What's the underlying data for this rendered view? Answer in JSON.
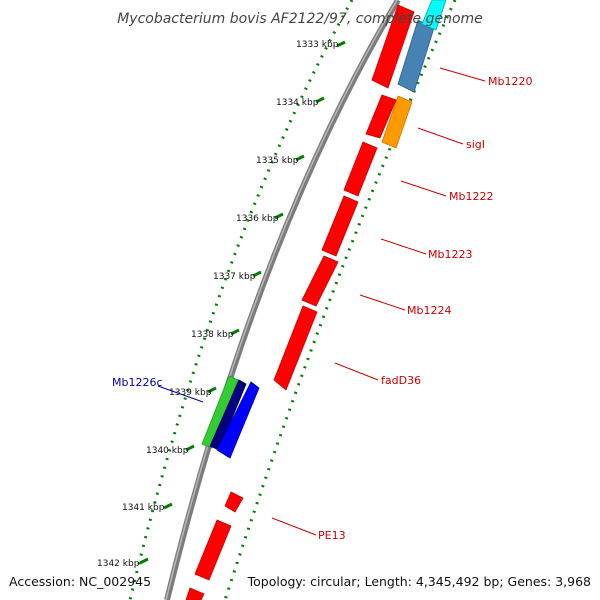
{
  "title": "Mycobacterium bovis AF2122/97, complete genome",
  "footer": {
    "accession": "Accession: NC_002945",
    "summary": "Topology: circular; Length: 4,345,492 bp; Genes: 3,968"
  },
  "scale_ticks": [
    "1333 kbp",
    "1334 kbp",
    "1335 kbp",
    "1336 kbp",
    "1337 kbp",
    "1338 kbp",
    "1339 kbp",
    "1340 kbp",
    "1341 kbp",
    "1342 kbp"
  ],
  "gene_labels": [
    {
      "text": "Mb1220",
      "color": "#cc0000"
    },
    {
      "text": "sigI",
      "color": "#cc0000"
    },
    {
      "text": "Mb1222",
      "color": "#cc0000"
    },
    {
      "text": "Mb1223",
      "color": "#cc0000"
    },
    {
      "text": "Mb1224",
      "color": "#cc0000"
    },
    {
      "text": "fadD36",
      "color": "#cc0000"
    },
    {
      "text": "PE13",
      "color": "#cc0000"
    },
    {
      "text": "Mb1226c",
      "color": "#0000aa"
    }
  ],
  "colors": {
    "backbone": "#808080",
    "gene_red": "#ff0000",
    "gene_orange": "#ff9900",
    "gene_steelblue": "#4682b4",
    "gene_cyan": "#00ffff",
    "gene_blue": "#0000ff",
    "gene_navy": "#000080",
    "gene_green": "#33cc33",
    "gc_dots": "#008000"
  }
}
